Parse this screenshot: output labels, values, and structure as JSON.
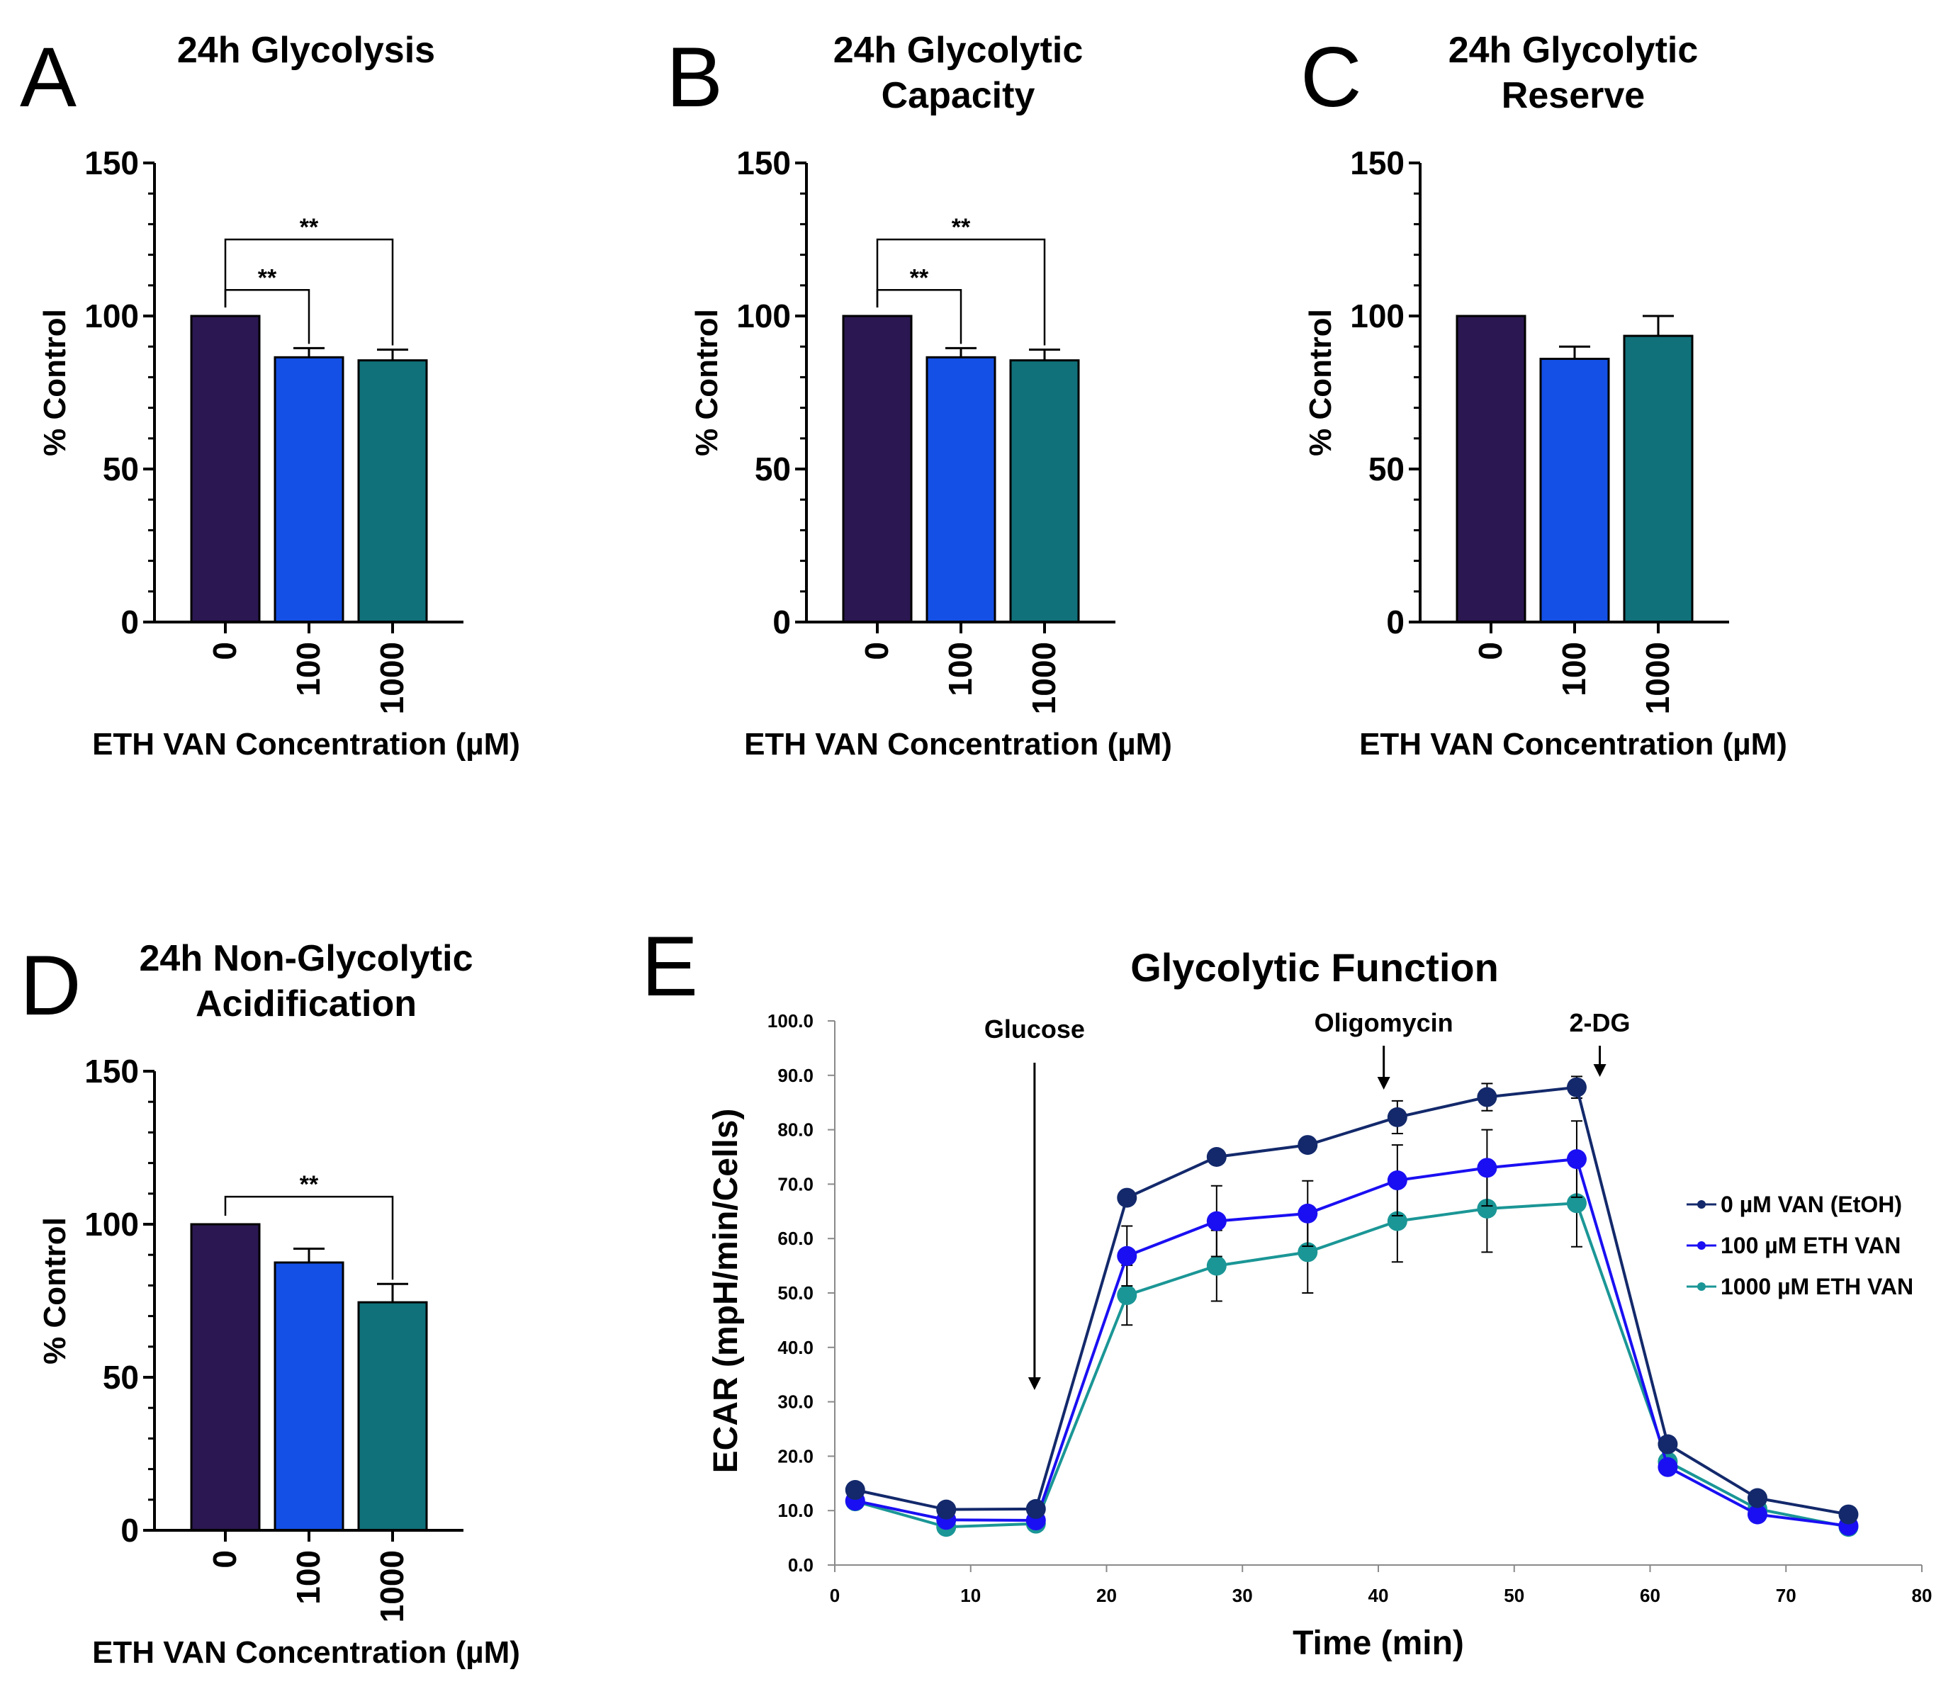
{
  "chart_data": [
    {
      "panel": "A",
      "type": "bar",
      "title_lines": [
        "24h Glycolysis"
      ],
      "xlabel": "ETH VAN Concentration (µM)",
      "ylabel": "% Control",
      "ylim": [
        0,
        150
      ],
      "yticks": [
        0,
        50,
        100,
        150
      ],
      "categories": [
        "0",
        "100",
        "1000"
      ],
      "values": [
        100,
        86.5,
        85.5
      ],
      "errors": [
        0,
        3,
        3.5
      ],
      "colors": [
        "#2b1751",
        "#1450e6",
        "#10717a"
      ],
      "significance": [
        {
          "from": 0,
          "to": 1,
          "label": "**"
        },
        {
          "from": 0,
          "to": 2,
          "label": "**"
        }
      ]
    },
    {
      "panel": "B",
      "type": "bar",
      "title_lines": [
        "24h Glycolytic",
        "Capacity"
      ],
      "xlabel": "ETH VAN Concentration (µM)",
      "ylabel": "% Control",
      "ylim": [
        0,
        150
      ],
      "yticks": [
        0,
        50,
        100,
        150
      ],
      "categories": [
        "0",
        "100",
        "1000"
      ],
      "values": [
        100,
        86.5,
        85.5
      ],
      "errors": [
        0,
        3,
        3.5
      ],
      "colors": [
        "#2b1751",
        "#1450e6",
        "#10717a"
      ],
      "significance": [
        {
          "from": 0,
          "to": 1,
          "label": "**"
        },
        {
          "from": 0,
          "to": 2,
          "label": "**"
        }
      ]
    },
    {
      "panel": "C",
      "type": "bar",
      "title_lines": [
        "24h Glycolytic",
        "Reserve"
      ],
      "xlabel": "ETH VAN Concentration (µM)",
      "ylabel": "% Control",
      "ylim": [
        0,
        150
      ],
      "yticks": [
        0,
        50,
        100,
        150
      ],
      "categories": [
        "0",
        "100",
        "1000"
      ],
      "values": [
        100,
        86,
        93.5
      ],
      "errors": [
        0,
        4,
        6.5
      ],
      "colors": [
        "#2b1751",
        "#1450e6",
        "#10717a"
      ],
      "significance": []
    },
    {
      "panel": "D",
      "type": "bar",
      "title_lines": [
        "24h Non-Glycolytic",
        "Acidification"
      ],
      "xlabel": "ETH VAN Concentration (µM)",
      "ylabel": "% Control",
      "ylim": [
        0,
        150
      ],
      "yticks": [
        0,
        50,
        100,
        150
      ],
      "categories": [
        "0",
        "100",
        "1000"
      ],
      "values": [
        100,
        87.5,
        74.5
      ],
      "errors": [
        0,
        4.5,
        6
      ],
      "colors": [
        "#2b1751",
        "#1450e6",
        "#10717a"
      ],
      "significance": [
        {
          "from": 0,
          "to": 2,
          "label": "**"
        }
      ]
    },
    {
      "panel": "E",
      "type": "line",
      "title": "Glycolytic Function",
      "xlabel": "Time (min)",
      "ylabel": "ECAR (mpH/min/Cells)",
      "xlim": [
        0,
        80
      ],
      "ylim": [
        0,
        100
      ],
      "xticks": [
        0,
        10,
        20,
        30,
        40,
        50,
        60,
        70,
        80
      ],
      "yticks": [
        "0.0",
        "10.0",
        "20.0",
        "30.0",
        "40.0",
        "50.0",
        "60.0",
        "70.0",
        "80.0",
        "90.0",
        "100.0"
      ],
      "x": [
        1.5,
        8.2,
        14.8,
        21.5,
        28.1,
        34.8,
        41.4,
        48.0,
        54.6,
        61.3,
        67.9,
        74.6
      ],
      "series": [
        {
          "name": "0 µM VAN  (EtOH)",
          "color": "#13296b",
          "values": [
            13.8,
            10.2,
            10.3,
            67.5,
            75.0,
            77.2,
            82.3,
            86.0,
            87.8,
            22.2,
            12.3,
            9.3
          ],
          "errors": [
            0.8,
            0.6,
            0.6,
            1.0,
            1.2,
            1.3,
            3.0,
            2.5,
            2.0,
            0.7,
            0.5,
            0.4
          ]
        },
        {
          "name": "100 µM ETH VAN",
          "color": "#1a0ff2",
          "values": [
            11.8,
            8.3,
            8.2,
            56.8,
            63.2,
            64.6,
            70.7,
            73.0,
            74.6,
            18.0,
            9.3,
            7.2
          ],
          "errors": [
            0.6,
            0.5,
            0.5,
            5.5,
            6.5,
            6.0,
            6.5,
            7.0,
            7.0,
            0.8,
            0.5,
            0.3
          ]
        },
        {
          "name": "1000 µM ETH VAN",
          "color": "#1b9696",
          "values": [
            11.7,
            7.0,
            7.6,
            49.6,
            55.0,
            57.5,
            63.2,
            65.5,
            66.5,
            19.0,
            10.3,
            7.0
          ],
          "errors": [
            0.6,
            0.4,
            0.4,
            5.5,
            6.5,
            7.5,
            7.5,
            8.0,
            8.0,
            0.8,
            0.5,
            0.3
          ]
        }
      ],
      "annotations": [
        {
          "label": "Glucose",
          "x": 14.7
        },
        {
          "label": "Oligomycin",
          "x": 40.4
        },
        {
          "label": "2-DG",
          "x": 56.3
        }
      ]
    }
  ]
}
